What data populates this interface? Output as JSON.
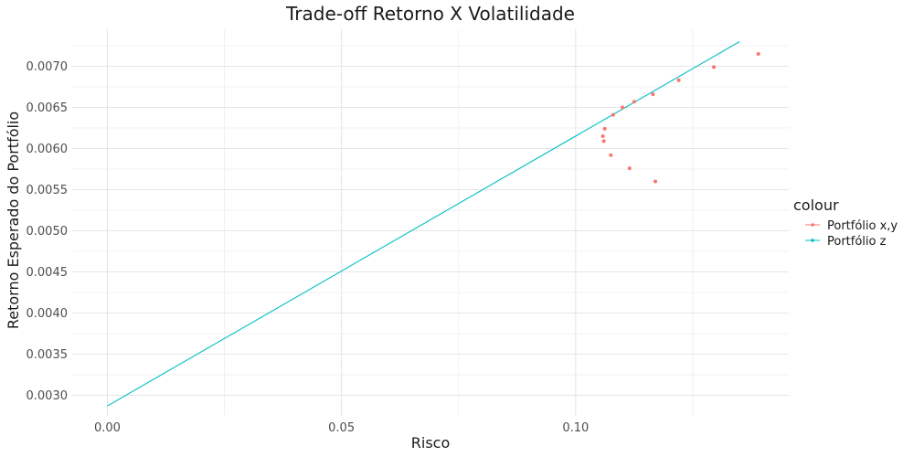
{
  "chart_data": {
    "type": "scatter",
    "title": "Trade-off Retorno X Volatilidade",
    "xlabel": "Risco",
    "ylabel": "Retorno Esperado do Portfólio",
    "xlim": [
      -0.0075,
      0.1455
    ],
    "ylim": [
      0.00275,
      0.00745
    ],
    "x_ticks": [
      0.0,
      0.05,
      0.1
    ],
    "x_tick_labels": [
      "0.00",
      "0.05",
      "0.10"
    ],
    "y_ticks": [
      0.003,
      0.0035,
      0.004,
      0.0045,
      0.005,
      0.0055,
      0.006,
      0.0065,
      0.007
    ],
    "y_tick_labels": [
      "0.0030",
      "0.0035",
      "0.0040",
      "0.0045",
      "0.0050",
      "0.0055",
      "0.0060",
      "0.0065",
      "0.0070"
    ],
    "grid": true,
    "legend": {
      "title": "colour",
      "position": "right"
    },
    "series": [
      {
        "name": "Portfólio x,y",
        "color": "#F8766D",
        "mode": "points",
        "points": [
          [
            0.1058,
            0.00615
          ],
          [
            0.106,
            0.00609
          ],
          [
            0.1062,
            0.00624
          ],
          [
            0.1075,
            0.00592
          ],
          [
            0.108,
            0.00641
          ],
          [
            0.11,
            0.0065
          ],
          [
            0.1115,
            0.00576
          ],
          [
            0.1125,
            0.00657
          ],
          [
            0.1165,
            0.00666
          ],
          [
            0.117,
            0.0056
          ],
          [
            0.122,
            0.00683
          ],
          [
            0.1295,
            0.00699
          ],
          [
            0.139,
            0.00715
          ]
        ]
      },
      {
        "name": "Portfólio z",
        "color": "#00BFC4",
        "mode": "line",
        "points": [
          [
            0.0,
            0.00287
          ],
          [
            0.135,
            0.0073
          ]
        ]
      }
    ]
  }
}
